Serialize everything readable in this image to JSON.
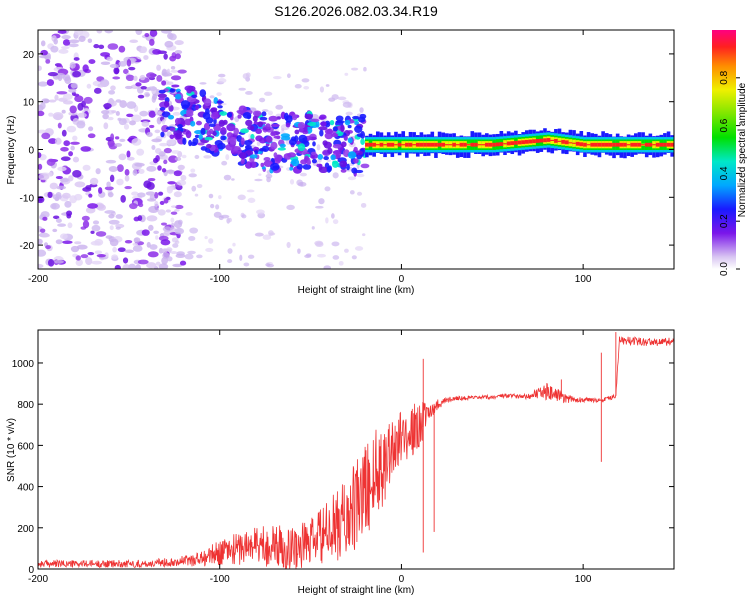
{
  "chart_data": [
    {
      "type": "heatmap",
      "title": "S126.2026.082.03.34.R19",
      "xlabel": "Height of straight line (km)",
      "ylabel": "Frequency (Hz)",
      "xlim": [
        -200,
        150
      ],
      "ylim": [
        -25,
        25
      ],
      "x_ticks": [
        -200,
        -100,
        0,
        100
      ],
      "y_ticks": [
        -20,
        -10,
        0,
        10,
        20
      ],
      "x_tick_labels": [
        "-200",
        "-100",
        "0",
        "100"
      ],
      "y_tick_labels": [
        "-20",
        "-10",
        "0",
        "10",
        "20"
      ],
      "colorbar": {
        "label": "Normalized spectral amplitude",
        "range": [
          0,
          1
        ],
        "ticks": [
          0,
          0.2,
          0.4,
          0.6,
          0.8
        ],
        "tick_labels": [
          "0.0",
          "0.2",
          "0.4",
          "0.6",
          "0.8"
        ]
      },
      "features": {
        "noise_region_x": [
          -200,
          -130
        ],
        "ridge_points": [
          [
            -130,
            9
          ],
          [
            -110,
            6
          ],
          [
            -90,
            3
          ],
          [
            -70,
            1
          ],
          [
            -50,
            2
          ],
          [
            -30,
            1
          ],
          [
            -20,
            1
          ],
          [
            0,
            1
          ],
          [
            50,
            1
          ],
          [
            80,
            2
          ],
          [
            100,
            1
          ],
          [
            150,
            1
          ]
        ],
        "strong_line_x": [
          -20,
          150
        ],
        "strong_line_freq": 1
      }
    },
    {
      "type": "line",
      "title": "",
      "xlabel": "Height of straight line (km)",
      "ylabel": "SNR (10 * v/v)",
      "xlim": [
        -200,
        150
      ],
      "ylim": [
        0,
        1160
      ],
      "x_ticks": [
        -200,
        -100,
        0,
        100
      ],
      "y_ticks": [
        0,
        200,
        400,
        600,
        800,
        1000
      ],
      "x_tick_labels": [
        "-200",
        "-100",
        "0",
        "100"
      ],
      "y_tick_labels": [
        "0",
        "200",
        "400",
        "600",
        "800",
        "1000"
      ],
      "color": "#ee3333",
      "series": [
        {
          "name": "SNR",
          "x": [
            -200,
            -180,
            -160,
            -140,
            -120,
            -110,
            -100,
            -90,
            -80,
            -70,
            -60,
            -50,
            -40,
            -30,
            -25,
            -20,
            -15,
            -10,
            -5,
            0,
            5,
            10,
            15,
            20,
            25,
            30,
            40,
            50,
            60,
            70,
            80,
            90,
            100,
            105,
            110,
            115,
            118,
            120,
            130,
            140,
            150
          ],
          "values": [
            25,
            25,
            25,
            25,
            40,
            50,
            80,
            100,
            120,
            110,
            100,
            130,
            180,
            250,
            300,
            380,
            450,
            520,
            600,
            640,
            660,
            700,
            760,
            800,
            820,
            830,
            830,
            835,
            840,
            840,
            860,
            830,
            820,
            820,
            820,
            830,
            840,
            1110,
            1105,
            1100,
            1105
          ],
          "noise_amplitude": [
            18,
            18,
            18,
            18,
            25,
            40,
            60,
            80,
            100,
            110,
            110,
            120,
            150,
            200,
            220,
            240,
            230,
            210,
            190,
            120,
            130,
            120,
            40,
            25,
            15,
            10,
            10,
            10,
            12,
            15,
            40,
            25,
            12,
            10,
            10,
            10,
            10,
            20,
            20,
            20,
            20
          ]
        }
      ],
      "spikes": [
        [
          12,
          1020
        ],
        [
          12,
          80
        ],
        [
          18,
          180
        ],
        [
          88,
          920
        ],
        [
          110,
          1050
        ],
        [
          110,
          520
        ],
        [
          118,
          1150
        ]
      ]
    }
  ]
}
